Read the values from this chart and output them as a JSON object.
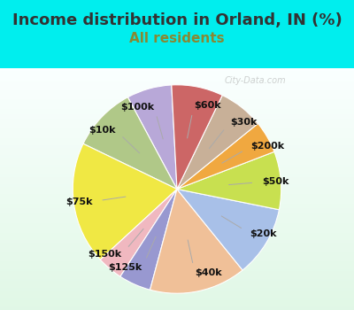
{
  "title": "Income distribution in Orland, IN (%)",
  "subtitle": "All residents",
  "title_fontsize": 13,
  "subtitle_fontsize": 11,
  "title_color": "#333333",
  "subtitle_color": "#888833",
  "background_color": "#00eeee",
  "chart_bg_start": "#e0f5e8",
  "chart_bg_end": "#f0fff0",
  "watermark": "City-Data.com",
  "labels": [
    "$100k",
    "$10k",
    "$75k",
    "$150k",
    "$125k",
    "$40k",
    "$20k",
    "$50k",
    "$200k",
    "$30k",
    "$60k"
  ],
  "values": [
    7,
    10,
    19,
    4,
    5,
    15,
    11,
    9,
    5,
    7,
    8
  ],
  "colors": [
    "#b8a8d8",
    "#b0c888",
    "#f0e844",
    "#f0b8c0",
    "#9898d0",
    "#f0c098",
    "#a8c0e8",
    "#c8e050",
    "#f0a840",
    "#c8b098",
    "#cc6666"
  ],
  "startangle": 93,
  "label_fontsize": 8,
  "label_color": "#111111"
}
